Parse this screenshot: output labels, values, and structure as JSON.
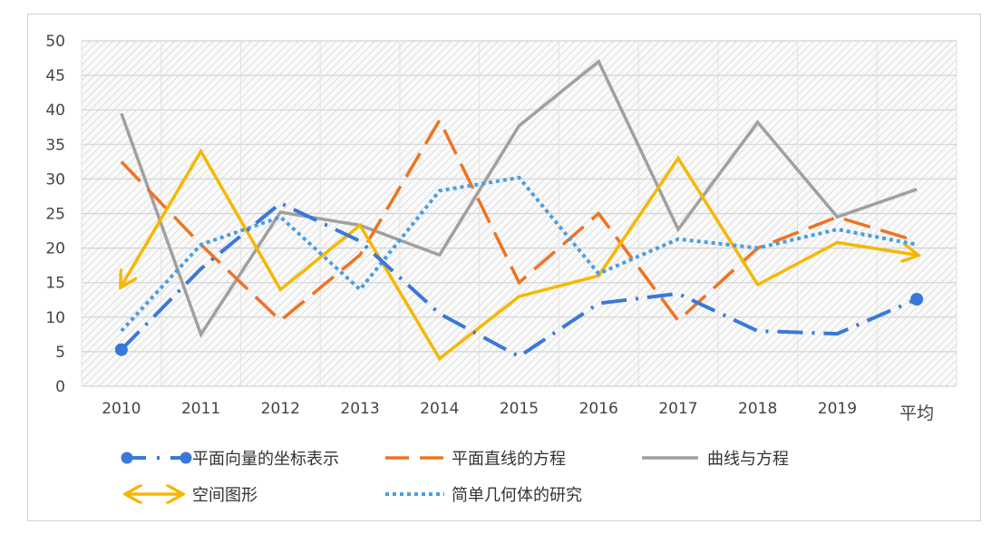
{
  "chart_data": {
    "type": "line",
    "title": "",
    "xlabel": "",
    "ylabel": "",
    "categories": [
      "2010",
      "2011",
      "2012",
      "2013",
      "2014",
      "2015",
      "2016",
      "2017",
      "2018",
      "2019",
      "平均"
    ],
    "ylim": [
      0,
      50
    ],
    "yticks": [
      0,
      5,
      10,
      15,
      20,
      25,
      30,
      35,
      40,
      45,
      50
    ],
    "grid": true,
    "legend_placement": "bottom",
    "series": [
      {
        "name": "平面向量的坐标表示",
        "color": "#3a78d8",
        "style": "dash-dot-marker",
        "values": [
          5.3,
          17,
          26.5,
          21,
          10.5,
          4.3,
          12,
          13.4,
          8,
          7.6,
          12.6
        ]
      },
      {
        "name": "平面直线的方程",
        "color": "#ee7322",
        "style": "dash",
        "values": [
          32.5,
          20.5,
          9.5,
          19,
          38.5,
          15,
          25,
          9.5,
          20,
          24.5,
          21
        ]
      },
      {
        "name": "曲线与方程",
        "color": "#a0a0a0",
        "style": "solid",
        "values": [
          39.5,
          7.5,
          25.2,
          23.3,
          19,
          37.7,
          47,
          22.7,
          38.2,
          24.5,
          28.5
        ]
      },
      {
        "name": "空间图形",
        "color": "#f5b800",
        "style": "arrows",
        "values": [
          14.5,
          34,
          14,
          23.3,
          4,
          13,
          16,
          33,
          14.7,
          20.8,
          19
        ]
      },
      {
        "name": "简单几何体的研究",
        "color": "#4a9ee0",
        "style": "dot",
        "values": [
          8,
          20.5,
          24.5,
          14,
          28.3,
          30.2,
          16.3,
          21.3,
          20,
          22.7,
          20.5
        ]
      }
    ]
  }
}
